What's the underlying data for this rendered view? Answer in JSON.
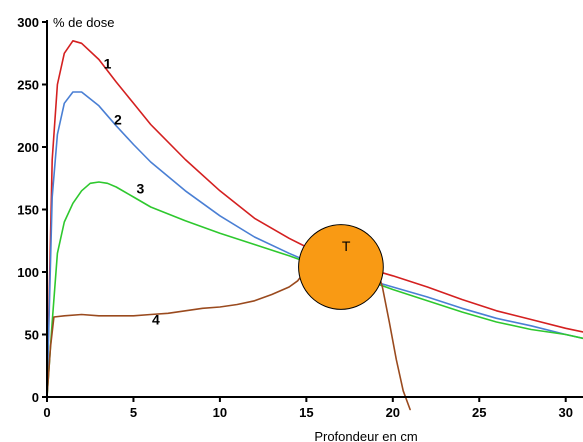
{
  "chart_data": {
    "type": "line",
    "ylabel": "% de dose",
    "xlabel": "Profondeur en cm",
    "xlim": [
      0,
      31
    ],
    "ylim": [
      0,
      300
    ],
    "x_ticks": [
      0,
      5,
      10,
      15,
      20,
      25,
      30
    ],
    "y_ticks": [
      0,
      50,
      100,
      150,
      200,
      250,
      300
    ],
    "grid": false,
    "series": [
      {
        "name": "1",
        "color": "#d42020",
        "x": [
          0,
          0.3,
          0.6,
          1,
          1.5,
          2,
          3,
          4,
          5,
          6,
          8,
          10,
          12,
          14,
          15,
          16,
          17,
          18,
          19,
          20,
          22,
          24,
          26,
          28,
          30,
          31
        ],
        "y": [
          0,
          190,
          250,
          275,
          285,
          283,
          270,
          252,
          235,
          218,
          190,
          165,
          143,
          127,
          120,
          114,
          109,
          105,
          101,
          97,
          88,
          78,
          69,
          62,
          55,
          52
        ]
      },
      {
        "name": "2",
        "color": "#4a7fd4",
        "x": [
          0,
          0.3,
          0.6,
          1,
          1.5,
          2,
          3,
          4,
          5,
          6,
          8,
          10,
          12,
          14,
          15,
          16,
          17,
          18,
          19,
          20,
          22,
          24,
          26,
          28,
          30,
          31
        ],
        "y": [
          0,
          160,
          210,
          235,
          244,
          244,
          233,
          217,
          202,
          188,
          165,
          145,
          128,
          115,
          109,
          104,
          100,
          96,
          92,
          88,
          80,
          71,
          63,
          57,
          50,
          47
        ]
      },
      {
        "name": "3",
        "color": "#2ec82e",
        "x": [
          0,
          0.3,
          0.6,
          1,
          1.5,
          2,
          2.5,
          3,
          3.5,
          4,
          5,
          6,
          8,
          10,
          12,
          14,
          15,
          16,
          17,
          18,
          19,
          20,
          22,
          24,
          26,
          28,
          30,
          31
        ],
        "y": [
          0,
          60,
          115,
          140,
          155,
          165,
          171,
          172,
          171,
          168,
          160,
          152,
          141,
          131,
          122,
          113,
          108,
          103,
          99,
          95,
          91,
          86,
          77,
          68,
          60,
          54,
          50,
          47
        ]
      },
      {
        "name": "4",
        "color": "#9a4a1e",
        "x": [
          0,
          0.2,
          0.4,
          1,
          2,
          3,
          4,
          5,
          6,
          7,
          8,
          9,
          10,
          11,
          12,
          13,
          14,
          14.5,
          15,
          16,
          17,
          18,
          19,
          19.4,
          19.8,
          20.2,
          20.6,
          21
        ],
        "y": [
          0,
          40,
          64,
          65,
          66,
          65,
          65,
          65,
          66,
          67,
          69,
          71,
          72,
          74,
          77,
          82,
          88,
          93,
          102,
          110,
          113,
          112,
          107,
          88,
          60,
          30,
          5,
          -10
        ]
      }
    ],
    "annotations": [
      {
        "text": "1",
        "x": 3.5,
        "y": 263
      },
      {
        "text": "2",
        "x": 4.1,
        "y": 218
      },
      {
        "text": "3",
        "x": 5.4,
        "y": 163
      },
      {
        "text": "4",
        "x": 6.3,
        "y": 58
      },
      {
        "text": "T",
        "x": 17.3,
        "y": 117
      }
    ],
    "target": {
      "label": "T",
      "center_x": 17,
      "center_y": 104,
      "radius_cm": 2.45,
      "fill": "#f99a14",
      "stroke": "#000000"
    }
  }
}
